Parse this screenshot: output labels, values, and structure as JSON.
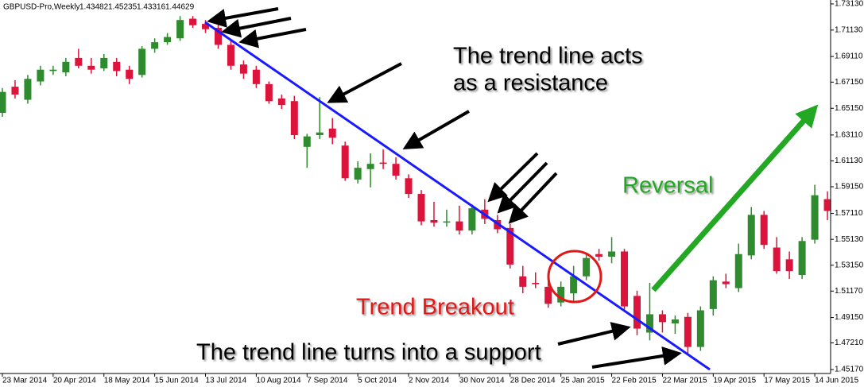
{
  "chart_data": {
    "type": "candlestick",
    "symbol": "GBPUSD-Pro,Weekly",
    "ohlc_info": [
      1.43482,
      1.45235,
      1.43316,
      1.44629
    ],
    "up_color": "#2e8b2e",
    "down_color": "#dc143c",
    "categories": [
      "23 Mar 2014",
      null,
      null,
      null,
      "20 Apr 2014",
      null,
      null,
      null,
      "18 May 2014",
      null,
      null,
      null,
      "15 Jun 2014",
      null,
      null,
      null,
      "13 Jul 2014",
      null,
      null,
      null,
      "10 Aug 2014",
      null,
      null,
      null,
      "7 Sep 2014",
      null,
      null,
      null,
      "5 Oct 2014",
      null,
      null,
      null,
      "2 Nov 2014",
      null,
      null,
      null,
      "30 Nov 2014",
      null,
      null,
      null,
      "28 Dec 2014",
      null,
      null,
      null,
      "25 Jan 2015",
      null,
      null,
      null,
      "22 Feb 2015",
      null,
      null,
      null,
      "22 Mar 2015",
      null,
      null,
      null,
      "19 Apr 2015",
      null,
      null,
      null,
      "17 May 2015",
      null,
      null,
      null,
      "14 Jun 2015",
      null
    ],
    "open": [
      1.648,
      1.668,
      1.658,
      1.672,
      1.68,
      1.679,
      1.69,
      1.684,
      1.682,
      1.687,
      1.681,
      1.677,
      1.697,
      1.702,
      1.705,
      1.72,
      1.716,
      1.713,
      1.7,
      1.685,
      1.681,
      1.67,
      1.659,
      1.657,
      1.622,
      1.631,
      1.636,
      1.623,
      1.597,
      1.605,
      1.61,
      1.609,
      1.598,
      1.586,
      1.566,
      1.565,
      1.565,
      1.558,
      1.574,
      1.566,
      1.56,
      1.523,
      1.518,
      1.515,
      1.503,
      1.51,
      1.523,
      1.54,
      1.538,
      1.542,
      1.508,
      1.48,
      1.494,
      1.487,
      1.492,
      1.469,
      1.498,
      1.519,
      1.514,
      1.539,
      1.57,
      1.545,
      1.536,
      1.524,
      1.551,
      1.582
    ],
    "high": [
      1.667,
      1.673,
      1.677,
      1.684,
      1.684,
      1.69,
      1.697,
      1.69,
      1.693,
      1.69,
      1.684,
      1.699,
      1.705,
      1.709,
      1.722,
      1.722,
      1.719,
      1.716,
      1.703,
      1.688,
      1.684,
      1.672,
      1.662,
      1.661,
      1.632,
      1.66,
      1.644,
      1.626,
      1.611,
      1.617,
      1.62,
      1.614,
      1.601,
      1.589,
      1.58,
      1.574,
      1.577,
      1.578,
      1.582,
      1.57,
      1.563,
      1.531,
      1.526,
      1.522,
      1.519,
      1.531,
      1.54,
      1.544,
      1.553,
      1.544,
      1.512,
      1.518,
      1.497,
      1.493,
      1.495,
      1.5,
      1.523,
      1.525,
      1.548,
      1.576,
      1.573,
      1.553,
      1.542,
      1.553,
      1.593,
      1.588
    ],
    "low": [
      1.645,
      1.659,
      1.655,
      1.669,
      1.677,
      1.676,
      1.682,
      1.678,
      1.68,
      1.676,
      1.67,
      1.675,
      1.694,
      1.7,
      1.703,
      1.713,
      1.709,
      1.697,
      1.681,
      1.674,
      1.667,
      1.655,
      1.651,
      1.628,
      1.606,
      1.628,
      1.624,
      1.596,
      1.594,
      1.591,
      1.605,
      1.597,
      1.583,
      1.562,
      1.561,
      1.561,
      1.555,
      1.555,
      1.563,
      1.556,
      1.529,
      1.51,
      1.514,
      1.499,
      1.5,
      1.504,
      1.52,
      1.535,
      1.533,
      1.497,
      1.478,
      1.474,
      1.48,
      1.479,
      1.464,
      1.466,
      1.493,
      1.514,
      1.511,
      1.536,
      1.544,
      1.525,
      1.521,
      1.521,
      1.548,
      1.566
    ],
    "close": [
      1.664,
      1.662,
      1.674,
      1.681,
      1.681,
      1.687,
      1.684,
      1.681,
      1.69,
      1.68,
      1.674,
      1.697,
      1.702,
      1.706,
      1.719,
      1.715,
      1.712,
      1.7,
      1.684,
      1.678,
      1.67,
      1.657,
      1.654,
      1.631,
      1.63,
      1.633,
      1.629,
      1.598,
      1.606,
      1.609,
      1.609,
      1.6,
      1.586,
      1.565,
      1.564,
      1.565,
      1.558,
      1.575,
      1.567,
      1.559,
      1.532,
      1.515,
      1.517,
      1.502,
      1.515,
      1.523,
      1.537,
      1.538,
      1.542,
      1.5,
      1.483,
      1.494,
      1.488,
      1.49,
      1.469,
      1.497,
      1.52,
      1.517,
      1.54,
      1.57,
      1.547,
      1.527,
      1.527,
      1.55,
      1.585,
      1.573
    ],
    "ylim": [
      1.4487,
      1.7343
    ],
    "yticks": [
      {
        "value": 1.4517,
        "label": "1.45170"
      },
      {
        "value": 1.4721,
        "label": "1.47210"
      },
      {
        "value": 1.4915,
        "label": "1.49150"
      },
      {
        "value": 1.5117,
        "label": "1.51170"
      },
      {
        "value": 1.5315,
        "label": "1.53150"
      },
      {
        "value": 1.5513,
        "label": "1.55130"
      },
      {
        "value": 1.5711,
        "label": "1.57110"
      },
      {
        "value": 1.5915,
        "label": "1.59150"
      },
      {
        "value": 1.6113,
        "label": "1.61130"
      },
      {
        "value": 1.6311,
        "label": "1.63110"
      },
      {
        "value": 1.6515,
        "label": "1.65150"
      },
      {
        "value": 1.6715,
        "label": "1.67150"
      },
      {
        "value": 1.6911,
        "label": "1.69110"
      },
      {
        "value": 1.7113,
        "label": "1.71130"
      },
      {
        "value": 1.7313,
        "label": "1.73130"
      }
    ],
    "grid": false,
    "annotations": [
      "The trend line acts",
      "as a resistance",
      "Reversal",
      "Trend Breakout",
      "The trend line turns into a support"
    ]
  }
}
